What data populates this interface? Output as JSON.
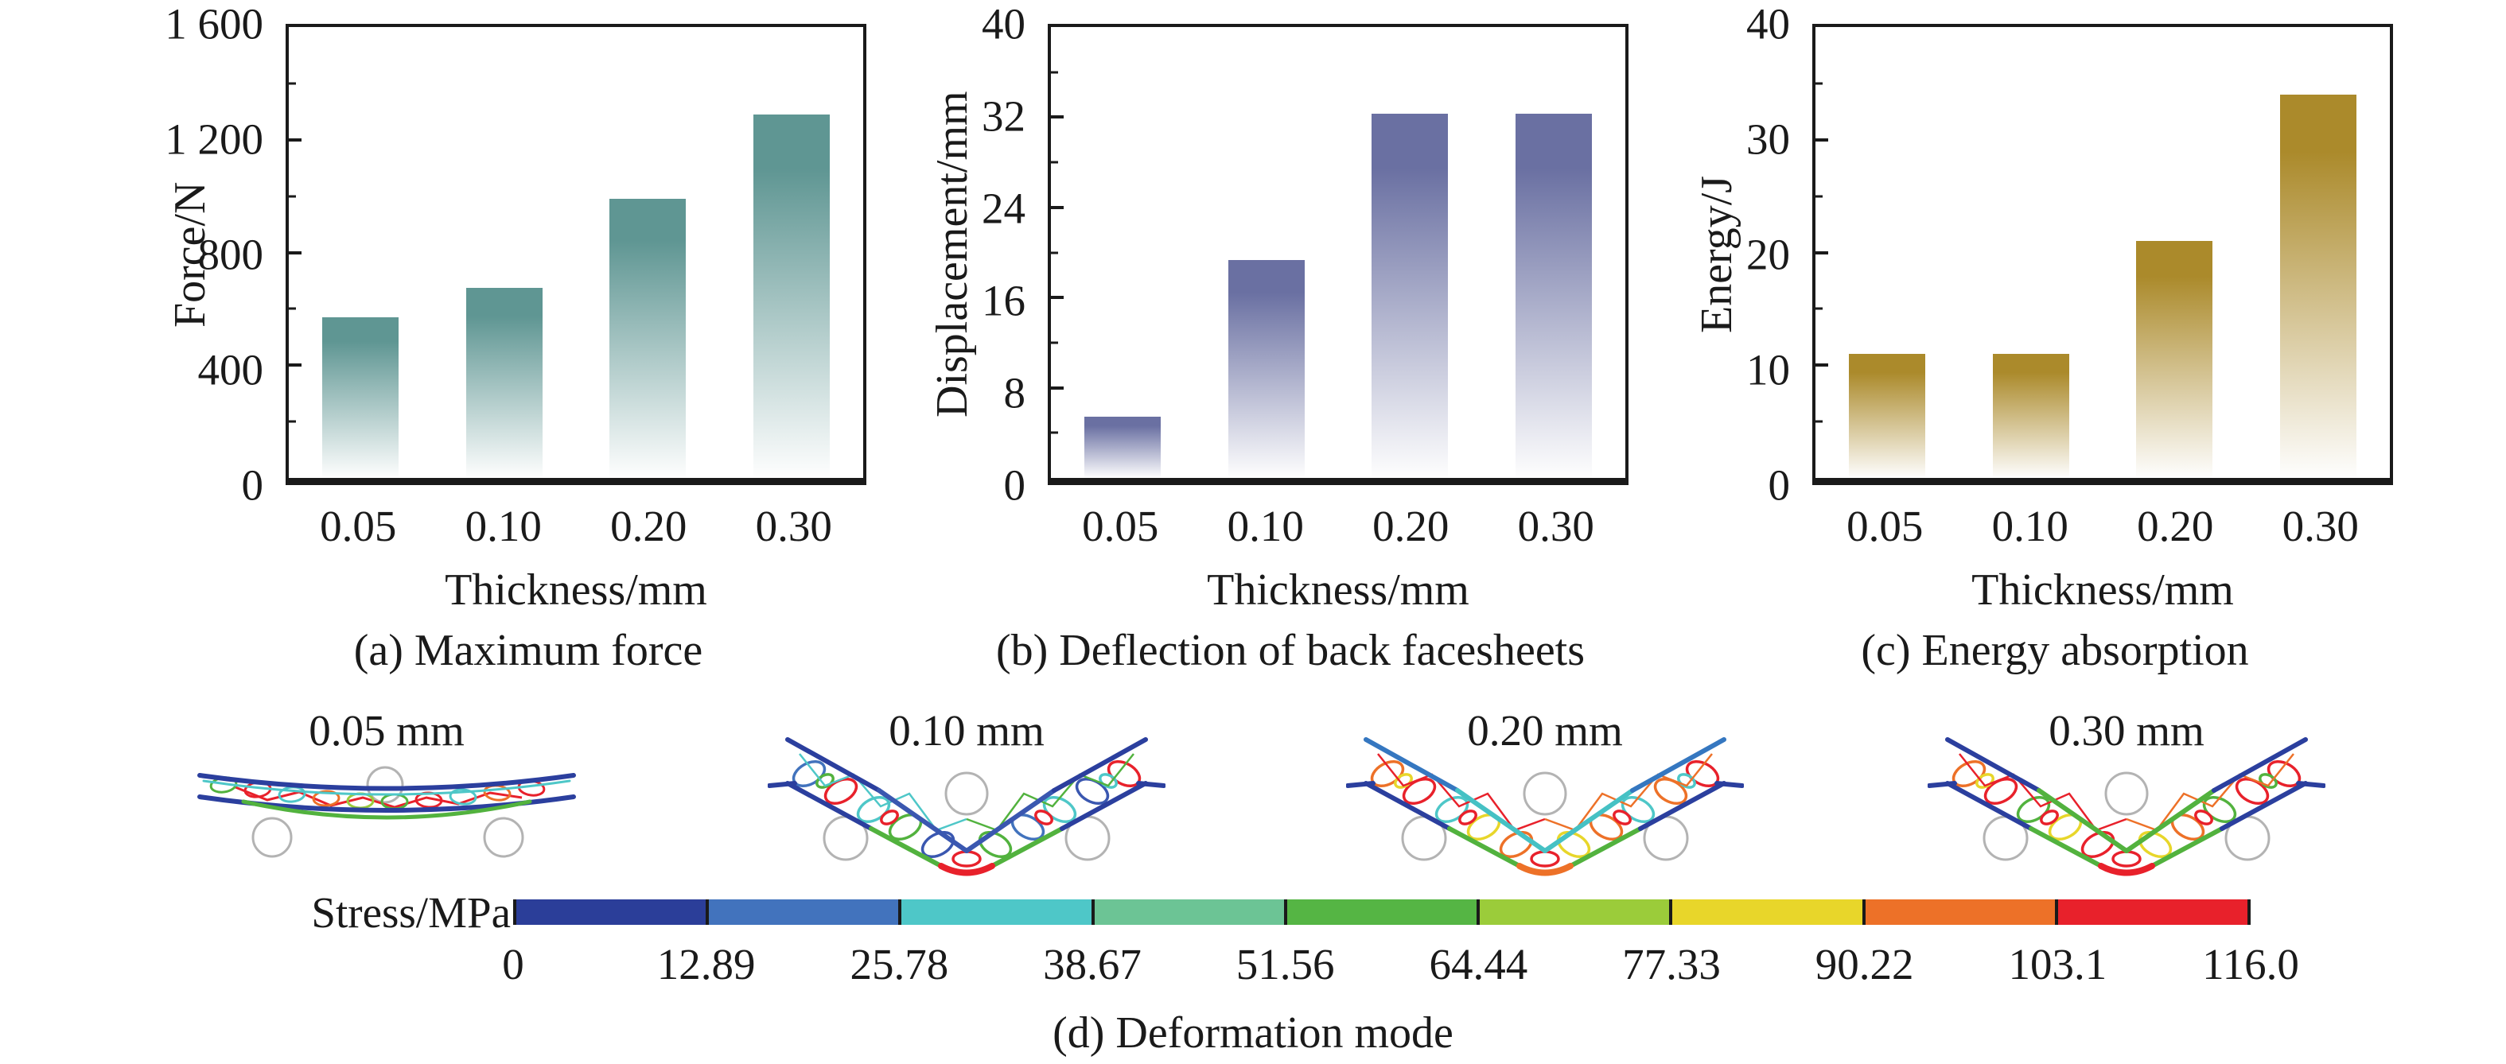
{
  "chart_data": [
    {
      "type": "bar",
      "panel": "a",
      "title": "(a) Maximum force",
      "xlabel": "Thickness/mm",
      "ylabel": "Force/N",
      "categories": [
        "0.05",
        "0.10",
        "0.20",
        "0.30"
      ],
      "values": [
        570,
        675,
        990,
        1290
      ],
      "ylim": [
        0,
        1600
      ],
      "ytick_labels": [
        "0",
        "400",
        "800",
        "1 200",
        "1 600"
      ],
      "bar_color": "#5f9693",
      "grid": false,
      "legend": "none"
    },
    {
      "type": "bar",
      "panel": "b",
      "title": "(b) Deflection of back facesheets",
      "xlabel": "Thickness/mm",
      "ylabel": "Displacement/mm",
      "categories": [
        "0.05",
        "0.10",
        "0.20",
        "0.30"
      ],
      "values": [
        5.4,
        19.3,
        32.3,
        32.3
      ],
      "ylim": [
        0,
        40
      ],
      "ytick_labels": [
        "0",
        "8",
        "16",
        "24",
        "32",
        "40"
      ],
      "bar_color": "#6a70a2",
      "grid": false,
      "legend": "none"
    },
    {
      "type": "bar",
      "panel": "c",
      "title": "(c) Energy absorption",
      "xlabel": "Thickness/mm",
      "ylabel": "Energy/J",
      "categories": [
        "0.05",
        "0.10",
        "0.20",
        "0.30"
      ],
      "values": [
        11,
        11,
        21,
        34
      ],
      "ylim": [
        0,
        40
      ],
      "ytick_labels": [
        "0",
        "10",
        "20",
        "30",
        "40"
      ],
      "bar_color": "#ab8a2b",
      "grid": false,
      "legend": "none"
    }
  ],
  "deformation": {
    "caption": "(d) Deformation mode",
    "colorbar_label": "Stress/MPa",
    "colorbar_ticks": [
      "0",
      "12.89",
      "25.78",
      "38.67",
      "51.56",
      "64.44",
      "77.33",
      "90.22",
      "103.1",
      "116.0"
    ],
    "colorbar_colors": [
      "#2b3e99",
      "#4273bd",
      "#4ec7c8",
      "#6cc495",
      "#55b544",
      "#9bcc3a",
      "#e8d62a",
      "#ed7128",
      "#e8212b"
    ],
    "specimens": [
      {
        "label": "0.05 mm"
      },
      {
        "label": "0.10 mm"
      },
      {
        "label": "0.20 mm"
      },
      {
        "label": "0.30 mm"
      }
    ],
    "frame_color": "#1a1a1a"
  }
}
